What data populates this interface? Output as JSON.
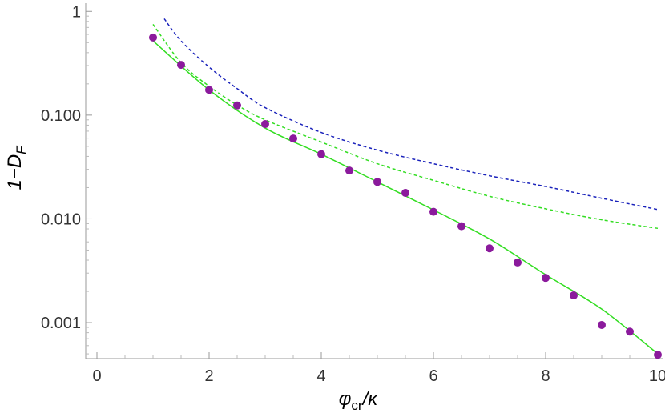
{
  "chart_data": {
    "type": "scatter",
    "title": "",
    "xlabel_main": "φ",
    "xlabel_sub": "cr",
    "xlabel_tail": "/κ",
    "ylabel_main": "1−D",
    "ylabel_sub": "F",
    "x_scale": "linear",
    "y_scale": "log",
    "xlim": [
      -0.2,
      10.1
    ],
    "ylim": [
      0.00045,
      1.2
    ],
    "x_ticks": [
      0,
      2,
      4,
      6,
      8,
      10
    ],
    "x_tick_labels": [
      "0",
      "2",
      "4",
      "6",
      "8",
      "10"
    ],
    "y_ticks": [
      1,
      0.1,
      0.01,
      0.001
    ],
    "y_tick_labels": [
      "1",
      "0.100",
      "0.010",
      "0.001"
    ],
    "grid": false,
    "series": [
      {
        "style": "markers",
        "color": "#8b1a9c",
        "x": [
          1.0,
          1.5,
          2.0,
          2.5,
          3.0,
          3.5,
          4.0,
          4.5,
          5.0,
          5.5,
          6.0,
          6.5,
          7.0,
          7.5,
          8.0,
          8.5,
          9.0,
          9.5,
          10.0
        ],
        "y": [
          0.56,
          0.305,
          0.175,
          0.124,
          0.082,
          0.0595,
          0.042,
          0.0292,
          0.0227,
          0.0178,
          0.0117,
          0.0085,
          0.0052,
          0.0038,
          0.0027,
          0.00183,
          0.00095,
          0.00082,
          0.00049
        ]
      },
      {
        "style": "solid",
        "color": "#33dd22",
        "x": [
          1.0,
          2.0,
          3.0,
          4.0,
          5.0,
          6.0,
          7.0,
          8.0,
          9.0,
          10.0
        ],
        "y": [
          0.52,
          0.175,
          0.075,
          0.042,
          0.0227,
          0.0122,
          0.0064,
          0.0029,
          0.00135,
          0.0005
        ]
      },
      {
        "style": "dashed",
        "color": "#33dd22",
        "x": [
          1.0,
          1.5,
          2.0,
          2.5,
          3.0,
          4.0,
          5.0,
          6.0,
          7.0,
          8.0,
          9.0,
          10.0
        ],
        "y": [
          0.75,
          0.32,
          0.19,
          0.125,
          0.09,
          0.055,
          0.034,
          0.0235,
          0.0165,
          0.0125,
          0.0098,
          0.0081
        ]
      },
      {
        "style": "dashed",
        "color": "#1a22bb",
        "x": [
          1.2,
          1.5,
          2.0,
          2.5,
          3.0,
          4.0,
          5.0,
          6.0,
          7.0,
          8.0,
          9.0,
          10.0
        ],
        "y": [
          0.85,
          0.52,
          0.29,
          0.18,
          0.118,
          0.068,
          0.046,
          0.034,
          0.026,
          0.0205,
          0.0158,
          0.0123
        ]
      }
    ]
  }
}
